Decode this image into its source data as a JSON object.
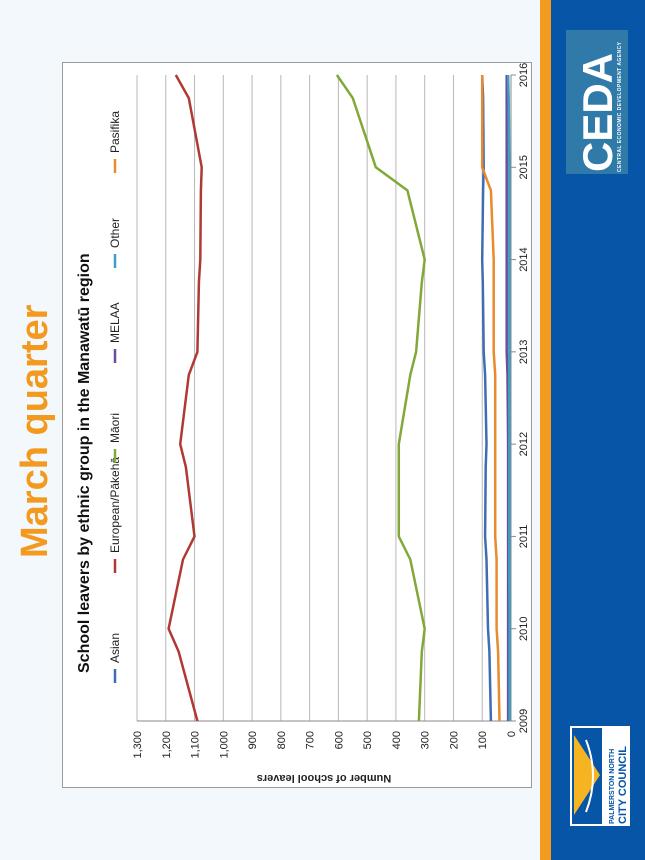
{
  "slide": {
    "heading": "March quarter",
    "colors": {
      "heading": "#f39a1e",
      "background": "#f2f8fb",
      "band_blue": "#0655a6",
      "band_orange": "#f29b1c"
    }
  },
  "logos": {
    "ceda": {
      "mark": "CEDA",
      "subtitle": "CENTRAL ECONOMIC DEVELOPMENT AGENCY",
      "bg": "#2f7aa8"
    },
    "pncc": {
      "line1": "PALMERSTON NORTH",
      "line2": "CITY COUNCIL"
    }
  },
  "chart_data": {
    "type": "line",
    "title": "School leavers by ethnic group in the Manawatū region",
    "ylabel": "Number of school leavers",
    "xlabel": "",
    "x": [
      2009,
      2009.75,
      2010,
      2010.75,
      2011,
      2011.75,
      2012,
      2012.75,
      2013,
      2013.75,
      2014,
      2014.75,
      2015,
      2015.75,
      2016
    ],
    "x_ticks": [
      2009,
      2010,
      2011,
      2012,
      2013,
      2014,
      2015,
      2016
    ],
    "x_tick_labels": [
      "2009",
      "2010",
      "2011",
      "2012",
      "2013",
      "2014",
      "2015",
      "2016"
    ],
    "ylim": [
      0,
      1300
    ],
    "y_ticks": [
      0,
      100,
      200,
      300,
      400,
      500,
      600,
      700,
      800,
      900,
      1000,
      1100,
      1200,
      1300
    ],
    "y_tick_labels": [
      "0",
      "100",
      "200",
      "300",
      "400",
      "500",
      "600",
      "700",
      "800",
      "900",
      "1,000",
      "1,100",
      "1,200",
      "1,300"
    ],
    "grid": true,
    "legend_position": "top",
    "series": [
      {
        "name": "Asian",
        "color": "#3f6db3",
        "values": [
          70,
          75,
          80,
          85,
          90,
          88,
          85,
          90,
          95,
          98,
          100,
          97,
          95,
          97,
          100
        ]
      },
      {
        "name": "European/Pākehā",
        "color": "#b03a33",
        "values": [
          1090,
          1155,
          1190,
          1140,
          1100,
          1130,
          1150,
          1120,
          1090,
          1085,
          1080,
          1078,
          1075,
          1120,
          1165
        ]
      },
      {
        "name": "Māori",
        "color": "#82a83a",
        "values": [
          320,
          310,
          300,
          350,
          390,
          390,
          390,
          350,
          330,
          310,
          300,
          360,
          470,
          550,
          605
        ]
      },
      {
        "name": "MELAA",
        "color": "#6c4d9b",
        "values": [
          10,
          10,
          10,
          10,
          10,
          10,
          10,
          12,
          15,
          15,
          15,
          15,
          15,
          15,
          15
        ]
      },
      {
        "name": "Other",
        "color": "#3c9fc3",
        "values": [
          5,
          5,
          5,
          6,
          6,
          6,
          6,
          6,
          6,
          6,
          6,
          6,
          6,
          8,
          10
        ]
      },
      {
        "name": "Pasifika",
        "color": "#e88a2e",
        "values": [
          40,
          45,
          50,
          50,
          55,
          55,
          55,
          55,
          60,
          60,
          60,
          70,
          100,
          100,
          100
        ]
      }
    ]
  }
}
